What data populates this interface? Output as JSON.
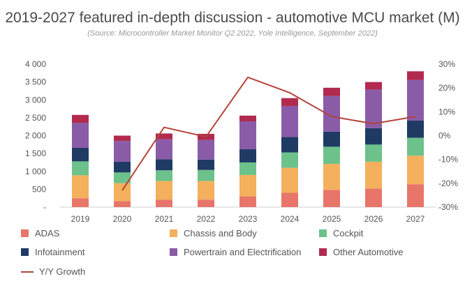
{
  "chart_data": {
    "type": "bar",
    "stacked": true,
    "title": "2019-2027 featured in-depth discussion - automotive MCU market (M)",
    "subtitle": "(Source: Microcontroller Market Monitor Q2 2022, Yole Intelligence, September 2022)",
    "categories": [
      "2019",
      "2020",
      "2021",
      "2022",
      "2023",
      "2024",
      "2025",
      "2026",
      "2027"
    ],
    "series": [
      {
        "name": "ADAS",
        "color": "#e8756a",
        "values": [
          250,
          170,
          210,
          210,
          300,
          400,
          480,
          520,
          640
        ]
      },
      {
        "name": "Chassis and Body",
        "color": "#f4b05c",
        "values": [
          640,
          500,
          520,
          520,
          600,
          700,
          730,
          750,
          800
        ]
      },
      {
        "name": "Cockpit",
        "color": "#6cc28a",
        "values": [
          390,
          300,
          300,
          310,
          350,
          430,
          480,
          480,
          500
        ]
      },
      {
        "name": "Infotainment",
        "color": "#1f3b63",
        "values": [
          380,
          300,
          310,
          290,
          370,
          430,
          420,
          460,
          480
        ]
      },
      {
        "name": "Powertrain and Electrification",
        "color": "#8a5ca8",
        "values": [
          700,
          580,
          560,
          550,
          780,
          870,
          1000,
          1080,
          1140
        ]
      },
      {
        "name": "Other Automotive",
        "color": "#b22a4e",
        "values": [
          220,
          150,
          160,
          170,
          160,
          220,
          230,
          210,
          240
        ]
      }
    ],
    "line_series": {
      "name": "Y/Y Growth",
      "color": "#b5433a",
      "axis": "right",
      "values": [
        null,
        -23,
        3.5,
        -0.5,
        24.5,
        18,
        8,
        5,
        8
      ]
    },
    "y_left": {
      "min": 0,
      "max": 4000,
      "ticks": [
        "-",
        "500",
        "1 000",
        "1 500",
        "2 000",
        "2 500",
        "3 000",
        "3 500",
        "4 000"
      ]
    },
    "y_right": {
      "min": -30,
      "max": 30,
      "ticks": [
        "-30%",
        "-20%",
        "-10%",
        "0%",
        "10%",
        "20%",
        "30%"
      ]
    },
    "grid": false,
    "legend": "bottom"
  }
}
